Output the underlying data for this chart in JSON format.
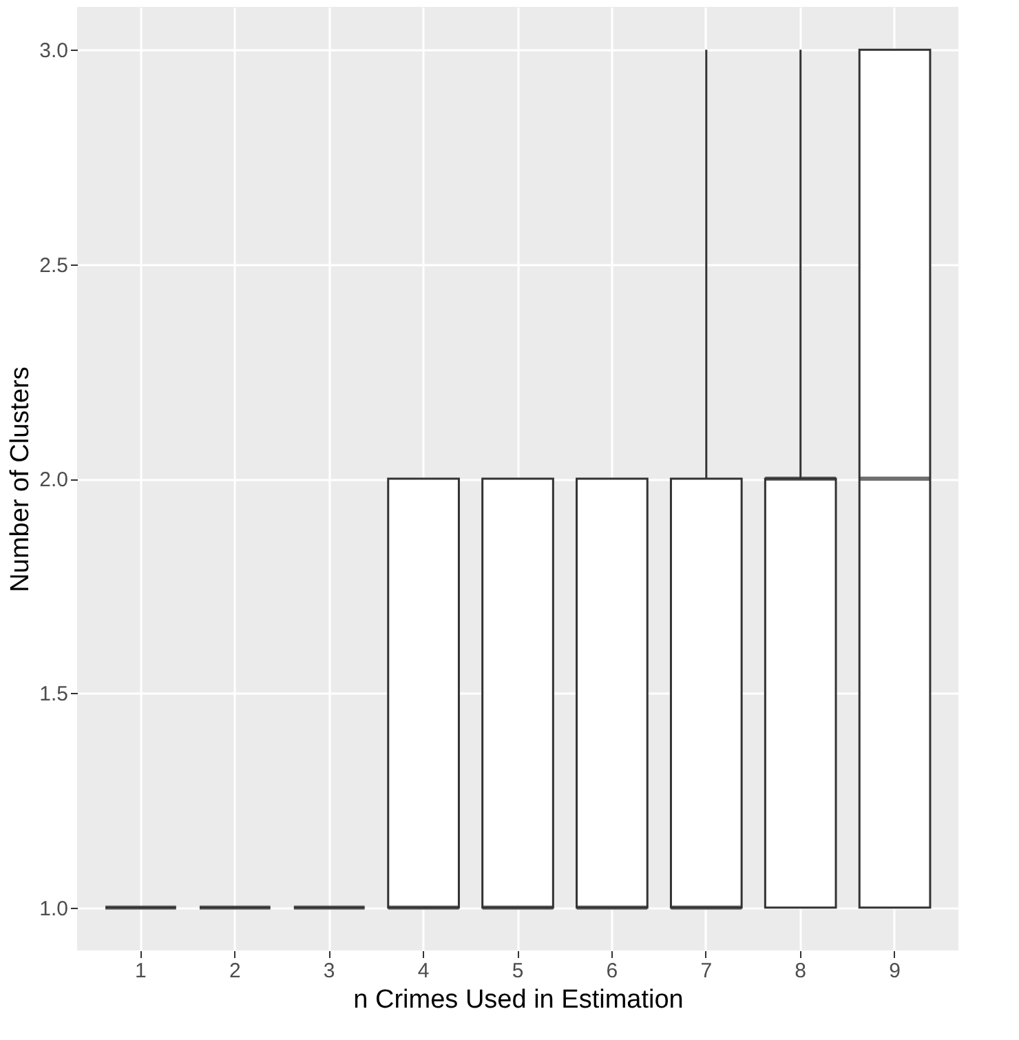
{
  "chart_data": {
    "type": "box",
    "xlabel": "n Crimes Used in Estimation",
    "ylabel": "Number of Clusters",
    "categories": [
      "1",
      "2",
      "3",
      "4",
      "5",
      "6",
      "7",
      "8",
      "9"
    ],
    "boxes": [
      {
        "low": 1,
        "q1": 1,
        "median": 1,
        "q3": 1,
        "high": 1
      },
      {
        "low": 1,
        "q1": 1,
        "median": 1,
        "q3": 1,
        "high": 1
      },
      {
        "low": 1,
        "q1": 1,
        "median": 1,
        "q3": 1,
        "high": 1
      },
      {
        "low": 1,
        "q1": 1,
        "median": 1,
        "q3": 2,
        "high": 2
      },
      {
        "low": 1,
        "q1": 1,
        "median": 1,
        "q3": 2,
        "high": 2
      },
      {
        "low": 1,
        "q1": 1,
        "median": 1,
        "q3": 2,
        "high": 2
      },
      {
        "low": 1,
        "q1": 1,
        "median": 1,
        "q3": 2,
        "high": 3
      },
      {
        "low": 1,
        "q1": 1,
        "median": 2,
        "q3": 2,
        "high": 3
      },
      {
        "low": 1,
        "q1": 1,
        "median": 2,
        "q3": 3,
        "high": 3
      }
    ],
    "ylim": [
      0.9,
      3.1
    ],
    "yticks": [
      {
        "value": 1,
        "label": "1.0"
      },
      {
        "value": 1.5,
        "label": "1.5"
      },
      {
        "value": 2,
        "label": "2.0"
      },
      {
        "value": 2.5,
        "label": "2.5"
      },
      {
        "value": 3,
        "label": "3.0"
      }
    ],
    "grid": true
  }
}
